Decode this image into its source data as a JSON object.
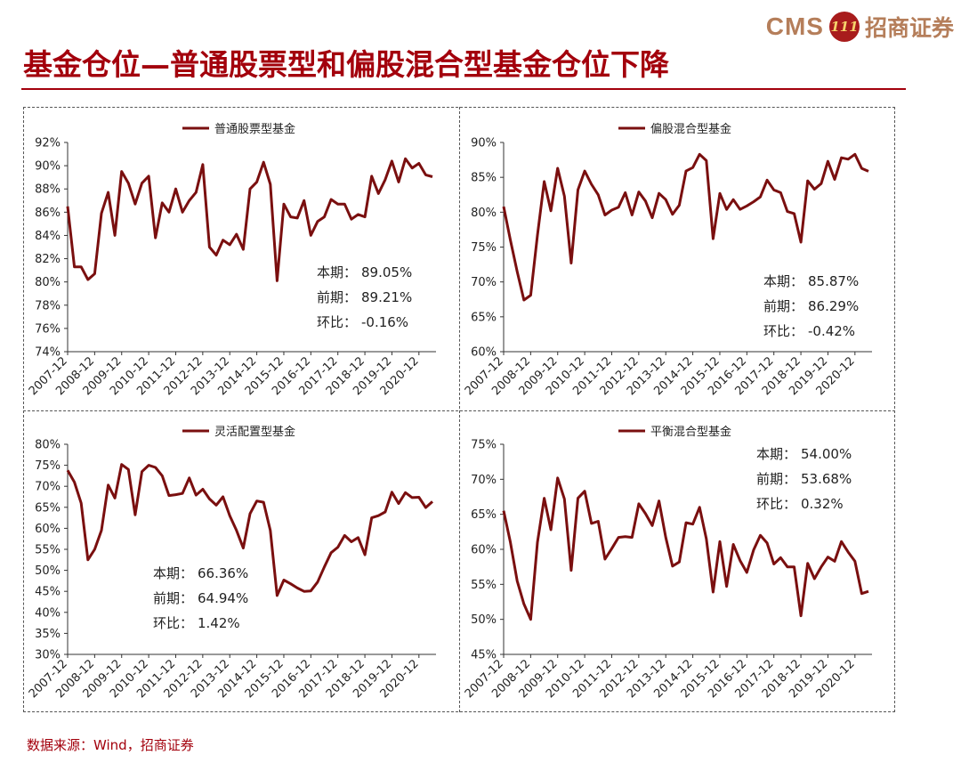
{
  "brand": {
    "latin": "CMS",
    "logo_text": "111",
    "cn": "招商证券"
  },
  "header": {
    "title": "基金仓位—普通股票型和偏股混合型基金仓位下降"
  },
  "footer": {
    "source": "数据来源：Wind，招商证券"
  },
  "colors": {
    "line": "#7a0f0f",
    "title": "#a3000c",
    "text": "#222222"
  },
  "chart_data": [
    {
      "type": "line",
      "title": "普通股票型基金",
      "x": [
        "2007-12",
        "2008-03",
        "2008-06",
        "2008-09",
        "2008-12",
        "2009-03",
        "2009-06",
        "2009-09",
        "2009-12",
        "2010-03",
        "2010-06",
        "2010-09",
        "2010-12",
        "2011-03",
        "2011-06",
        "2011-09",
        "2011-12",
        "2012-03",
        "2012-06",
        "2012-09",
        "2012-12",
        "2013-03",
        "2013-06",
        "2013-09",
        "2013-12",
        "2014-03",
        "2014-06",
        "2014-09",
        "2014-12",
        "2015-03",
        "2015-06",
        "2015-09",
        "2015-12",
        "2016-03",
        "2016-06",
        "2016-09",
        "2016-12",
        "2017-03",
        "2017-06",
        "2017-09",
        "2017-12",
        "2018-03",
        "2018-06",
        "2018-09",
        "2018-12",
        "2019-03",
        "2019-06",
        "2019-09",
        "2019-12",
        "2020-03",
        "2020-06",
        "2020-09",
        "2020-12",
        "2021-03",
        "2021-06"
      ],
      "x_tick_labels": [
        "2007-12",
        "2008-12",
        "2009-12",
        "2010-12",
        "2011-12",
        "2012-12",
        "2013-12",
        "2014-12",
        "2015-12",
        "2016-12",
        "2017-12",
        "2018-12",
        "2019-12",
        "2020-12"
      ],
      "y": [
        86.5,
        81.3,
        81.3,
        80.2,
        80.7,
        85.9,
        87.7,
        84.0,
        89.5,
        88.5,
        86.7,
        88.5,
        89.1,
        83.8,
        86.8,
        86.0,
        88.0,
        86.0,
        87.0,
        87.7,
        90.1,
        83.0,
        82.3,
        83.6,
        83.2,
        84.1,
        82.8,
        88.0,
        88.6,
        90.3,
        88.4,
        80.1,
        86.7,
        85.6,
        85.5,
        87.0,
        84.0,
        85.2,
        85.6,
        87.1,
        86.7,
        86.7,
        85.4,
        85.8,
        85.6,
        89.1,
        87.6,
        88.8,
        90.4,
        88.6,
        90.6,
        89.8,
        90.2,
        89.21,
        89.05
      ],
      "y_tick_labels": [
        "74%",
        "76%",
        "78%",
        "80%",
        "82%",
        "84%",
        "86%",
        "88%",
        "90%",
        "92%"
      ],
      "ylim": [
        74,
        92
      ],
      "legend": "普通股票型基金",
      "stats": {
        "current_label": "本期：",
        "current": "89.05%",
        "prev_label": "前期：",
        "prev": "89.21%",
        "change_label": "环比：",
        "change": "-0.16%"
      }
    },
    {
      "type": "line",
      "title": "偏股混合型基金",
      "x": [
        "2007-12",
        "2008-03",
        "2008-06",
        "2008-09",
        "2008-12",
        "2009-03",
        "2009-06",
        "2009-09",
        "2009-12",
        "2010-03",
        "2010-06",
        "2010-09",
        "2010-12",
        "2011-03",
        "2011-06",
        "2011-09",
        "2011-12",
        "2012-03",
        "2012-06",
        "2012-09",
        "2012-12",
        "2013-03",
        "2013-06",
        "2013-09",
        "2013-12",
        "2014-03",
        "2014-06",
        "2014-09",
        "2014-12",
        "2015-03",
        "2015-06",
        "2015-09",
        "2015-12",
        "2016-03",
        "2016-06",
        "2016-09",
        "2016-12",
        "2017-03",
        "2017-06",
        "2017-09",
        "2017-12",
        "2018-03",
        "2018-06",
        "2018-09",
        "2018-12",
        "2019-03",
        "2019-06",
        "2019-09",
        "2019-12",
        "2020-03",
        "2020-06",
        "2020-09",
        "2020-12",
        "2021-03",
        "2021-06"
      ],
      "x_tick_labels": [
        "2007-12",
        "2008-12",
        "2009-12",
        "2010-12",
        "2011-12",
        "2012-12",
        "2013-12",
        "2014-12",
        "2015-12",
        "2016-12",
        "2017-12",
        "2018-12",
        "2019-12",
        "2020-12"
      ],
      "y": [
        80.8,
        76.0,
        71.5,
        67.4,
        68.1,
        76.7,
        84.4,
        80.2,
        86.3,
        82.3,
        72.7,
        83.2,
        85.9,
        84.0,
        82.5,
        79.6,
        80.3,
        80.7,
        82.8,
        79.6,
        82.9,
        81.6,
        79.2,
        82.7,
        81.8,
        79.7,
        81.0,
        85.9,
        86.4,
        88.3,
        87.4,
        76.2,
        82.7,
        80.4,
        81.8,
        80.4,
        80.9,
        81.5,
        82.2,
        84.6,
        83.2,
        82.8,
        80.1,
        79.8,
        75.7,
        84.5,
        83.3,
        84.1,
        87.3,
        84.7,
        87.8,
        87.6,
        88.3,
        86.29,
        85.87
      ],
      "y_tick_labels": [
        "60%",
        "65%",
        "70%",
        "75%",
        "80%",
        "85%",
        "90%"
      ],
      "ylim": [
        60,
        90
      ],
      "legend": "偏股混合型基金",
      "stats": {
        "current_label": "本期：",
        "current": "85.87%",
        "prev_label": "前期：",
        "prev": "86.29%",
        "change_label": "环比：",
        "change": "-0.42%"
      }
    },
    {
      "type": "line",
      "title": "灵活配置型基金",
      "x": [
        "2007-12",
        "2008-03",
        "2008-06",
        "2008-09",
        "2008-12",
        "2009-03",
        "2009-06",
        "2009-09",
        "2009-12",
        "2010-03",
        "2010-06",
        "2010-09",
        "2010-12",
        "2011-03",
        "2011-06",
        "2011-09",
        "2011-12",
        "2012-03",
        "2012-06",
        "2012-09",
        "2012-12",
        "2013-03",
        "2013-06",
        "2013-09",
        "2013-12",
        "2014-03",
        "2014-06",
        "2014-09",
        "2014-12",
        "2015-03",
        "2015-06",
        "2015-09",
        "2015-12",
        "2016-03",
        "2016-06",
        "2016-09",
        "2016-12",
        "2017-03",
        "2017-06",
        "2017-09",
        "2017-12",
        "2018-03",
        "2018-06",
        "2018-09",
        "2018-12",
        "2019-03",
        "2019-06",
        "2019-09",
        "2019-12",
        "2020-03",
        "2020-06",
        "2020-09",
        "2020-12",
        "2021-03",
        "2021-06"
      ],
      "x_tick_labels": [
        "2007-12",
        "2008-12",
        "2009-12",
        "2010-12",
        "2011-12",
        "2012-12",
        "2013-12",
        "2014-12",
        "2015-12",
        "2016-12",
        "2017-12",
        "2018-12",
        "2019-12",
        "2020-12"
      ],
      "y": [
        73.8,
        71.0,
        66.0,
        52.5,
        55.0,
        59.5,
        70.3,
        67.2,
        75.2,
        74.0,
        63.2,
        73.5,
        75.0,
        74.5,
        72.5,
        67.8,
        68.0,
        68.3,
        72.0,
        67.9,
        69.3,
        67.0,
        65.5,
        67.5,
        63.0,
        59.5,
        55.3,
        63.5,
        66.5,
        66.2,
        59.5,
        44.0,
        47.7,
        46.8,
        45.8,
        45.0,
        45.1,
        47.2,
        50.8,
        54.2,
        55.5,
        58.3,
        56.8,
        57.8,
        53.7,
        62.5,
        63.0,
        63.9,
        68.6,
        65.9,
        68.5,
        67.3,
        67.4,
        64.94,
        66.36
      ],
      "y_tick_labels": [
        "30%",
        "35%",
        "40%",
        "45%",
        "50%",
        "55%",
        "60%",
        "65%",
        "70%",
        "75%",
        "80%"
      ],
      "ylim": [
        30,
        80
      ],
      "legend": "灵活配置型基金",
      "stats": {
        "current_label": "本期：",
        "current": "66.36%",
        "prev_label": "前期：",
        "prev": "64.94%",
        "change_label": "环比：",
        "change": "1.42%"
      }
    },
    {
      "type": "line",
      "title": "平衡混合型基金",
      "x": [
        "2007-12",
        "2008-03",
        "2008-06",
        "2008-09",
        "2008-12",
        "2009-03",
        "2009-06",
        "2009-09",
        "2009-12",
        "2010-03",
        "2010-06",
        "2010-09",
        "2010-12",
        "2011-03",
        "2011-06",
        "2011-09",
        "2011-12",
        "2012-03",
        "2012-06",
        "2012-09",
        "2012-12",
        "2013-03",
        "2013-06",
        "2013-09",
        "2013-12",
        "2014-03",
        "2014-06",
        "2014-09",
        "2014-12",
        "2015-03",
        "2015-06",
        "2015-09",
        "2015-12",
        "2016-03",
        "2016-06",
        "2016-09",
        "2016-12",
        "2017-03",
        "2017-06",
        "2017-09",
        "2017-12",
        "2018-03",
        "2018-06",
        "2018-09",
        "2018-12",
        "2019-03",
        "2019-06",
        "2019-09",
        "2019-12",
        "2020-03",
        "2020-06",
        "2020-09",
        "2020-12",
        "2021-03",
        "2021-06"
      ],
      "x_tick_labels": [
        "2007-12",
        "2008-12",
        "2009-12",
        "2010-12",
        "2011-12",
        "2012-12",
        "2013-12",
        "2014-12",
        "2015-12",
        "2016-12",
        "2017-12",
        "2018-12",
        "2019-12",
        "2020-12"
      ],
      "y": [
        65.5,
        61.0,
        55.5,
        52.2,
        50.0,
        61.0,
        67.3,
        62.8,
        70.2,
        67.2,
        57.0,
        67.3,
        68.3,
        63.7,
        64.0,
        58.6,
        60.1,
        61.7,
        61.8,
        61.7,
        66.5,
        65.1,
        63.4,
        66.9,
        61.7,
        57.6,
        58.2,
        63.8,
        63.6,
        66.0,
        61.5,
        53.9,
        61.1,
        54.7,
        60.7,
        58.4,
        56.7,
        59.9,
        62.0,
        60.9,
        57.9,
        58.8,
        57.5,
        57.5,
        50.5,
        58.0,
        55.8,
        57.5,
        58.9,
        58.3,
        61.1,
        59.6,
        58.3,
        53.68,
        54.0
      ],
      "y_tick_labels": [
        "45%",
        "50%",
        "55%",
        "60%",
        "65%",
        "70%",
        "75%"
      ],
      "ylim": [
        45,
        75
      ],
      "legend": "平衡混合型基金",
      "stats": {
        "current_label": "本期：",
        "current": "54.00%",
        "prev_label": "前期：",
        "prev": "53.68%",
        "change_label": "环比：",
        "change": "0.32%"
      }
    }
  ]
}
